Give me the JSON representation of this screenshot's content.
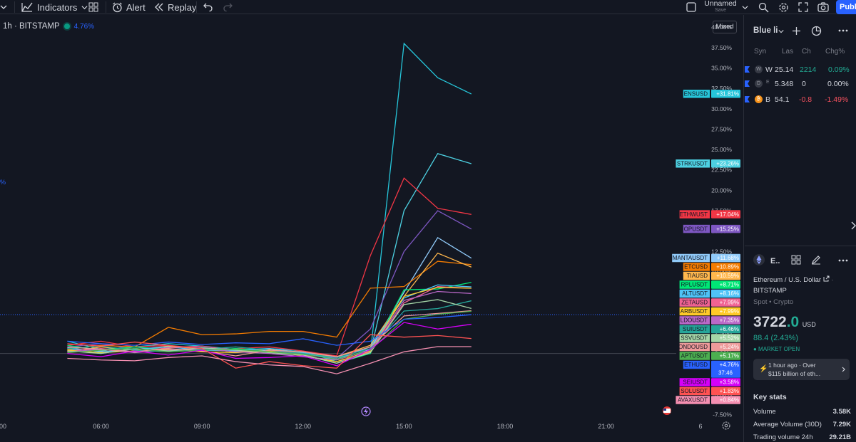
{
  "toolbar": {
    "indicators_label": "Indicators",
    "alert_label": "Alert",
    "replay_label": "Replay",
    "layout_name": "Unnamed",
    "layout_save": "Save",
    "publish_label": "Publi"
  },
  "legend": {
    "symbol": "1h · BITSTAMP",
    "change": "4.76%"
  },
  "side_fragment": "%",
  "scale_mode": "Mixed",
  "chart_data": {
    "type": "line",
    "x_ticks": [
      "00",
      "06:00",
      "09:00",
      "12:00",
      "15:00",
      "18:00",
      "21:00",
      "6"
    ],
    "y_ticks": [
      "40.00%",
      "37.50%",
      "35.00%",
      "32.50%",
      "30.00%",
      "27.50%",
      "25.00%",
      "22.50%",
      "20.00%",
      "17.50%",
      "15.00%",
      "12.50%",
      "10.00%",
      "7.50%",
      "5.00%",
      "2.50%",
      "0.00%",
      "-2.50%",
      "-5.00%",
      "-7.50%"
    ],
    "ylim": [
      -8.5,
      41.5
    ],
    "x_hours": [
      2,
      3,
      4,
      5,
      6,
      7,
      8,
      9,
      10,
      11,
      12,
      13,
      14
    ],
    "series": [
      {
        "name": "ENSUSD",
        "label": "+31.81%",
        "color": "#26c6da",
        "values": [
          1.5,
          0.5,
          0.8,
          1.2,
          0.9,
          0.5,
          0.6,
          0.3,
          -1.0,
          0.0,
          38.0,
          33.8,
          31.81
        ]
      },
      {
        "name": "STRKUSDT",
        "label": "+23.26%",
        "color": "#4dd0e1",
        "values": [
          0.5,
          0.0,
          0.6,
          0.3,
          0.5,
          0.4,
          0.2,
          0.0,
          -0.5,
          0.2,
          17.5,
          24.5,
          23.26
        ]
      },
      {
        "name": "ETHWUST",
        "label": "+17.04%",
        "color": "#f23645",
        "values": [
          1.0,
          1.5,
          0.8,
          1.0,
          0.4,
          0.6,
          0.8,
          0.3,
          -0.3,
          12.0,
          21.5,
          17.8,
          17.04
        ]
      },
      {
        "name": "OPUSDT",
        "label": "+15.25%",
        "color": "#7e57c2",
        "values": [
          0.8,
          1.2,
          0.5,
          0.9,
          0.7,
          0.5,
          0.3,
          0.0,
          -0.6,
          3.0,
          12.5,
          17.5,
          15.25
        ]
      },
      {
        "name": "MANTAUSDT",
        "label": "+11.68%",
        "color": "#90caf9",
        "values": [
          0.6,
          0.3,
          0.8,
          0.4,
          0.6,
          0.2,
          0.4,
          0.1,
          -0.8,
          0.5,
          7.5,
          14.2,
          11.68
        ]
      },
      {
        "name": "ETCUSD",
        "label": "+10.89%",
        "color": "#f57c00",
        "values": [
          0.5,
          1.0,
          0.8,
          3.2,
          2.3,
          2.4,
          2.7,
          2.7,
          2.0,
          8.0,
          8.2,
          11.3,
          10.89
        ]
      },
      {
        "name": "TIAUSD",
        "label": "+10.59%",
        "color": "#ffb74d",
        "values": [
          0.2,
          0.8,
          0.4,
          0.9,
          0.6,
          0.2,
          0.5,
          0.0,
          -0.4,
          1.0,
          7.0,
          12.3,
          10.59
        ]
      },
      {
        "name": "RPLUSDT",
        "label": "+8.71%",
        "color": "#00e676",
        "values": [
          1.0,
          0.4,
          0.8,
          0.5,
          0.3,
          0.6,
          0.2,
          -0.2,
          -1.2,
          0.0,
          7.8,
          7.9,
          8.71
        ]
      },
      {
        "name": "ALTUSDT",
        "label": "+8.16%",
        "color": "#4fc3f7",
        "values": [
          0.7,
          0.2,
          0.5,
          0.8,
          0.4,
          0.3,
          0.6,
          0.1,
          -0.7,
          0.8,
          6.8,
          8.4,
          8.16
        ]
      },
      {
        "name": "ZETAUSD",
        "label": "+7.99%",
        "color": "#f06292",
        "values": [
          0.3,
          0.6,
          0.2,
          0.7,
          0.9,
          0.4,
          0.2,
          -0.1,
          -1.2,
          0.2,
          6.2,
          8.2,
          7.99
        ]
      },
      {
        "name": "ARBUSDT",
        "label": "+7.99%",
        "color": "#ffca28",
        "values": [
          0.4,
          0.1,
          0.3,
          0.5,
          0.2,
          0.1,
          0.3,
          -0.3,
          -1.0,
          0.3,
          7.0,
          8.1,
          7.99
        ]
      },
      {
        "name": "LDOUSDT",
        "label": "+7.35%",
        "color": "#ba68c8",
        "values": [
          0.2,
          0.5,
          0.1,
          0.4,
          0.6,
          0.2,
          0.0,
          -0.4,
          -0.8,
          0.4,
          6.5,
          7.6,
          7.35
        ]
      },
      {
        "name": "SUIUSDT",
        "label": "+6.46%",
        "color": "#26a69a",
        "values": [
          0.6,
          0.9,
          0.4,
          0.2,
          0.5,
          0.8,
          0.4,
          0.0,
          -0.5,
          0.6,
          5.2,
          5.5,
          6.46
        ]
      },
      {
        "name": "SSVUSDT",
        "label": "+5.52%",
        "color": "#a5d6a7",
        "values": [
          0.3,
          0.0,
          0.6,
          0.3,
          0.7,
          0.4,
          0.1,
          -0.2,
          -1.2,
          0.1,
          6.0,
          6.6,
          5.52
        ]
      },
      {
        "name": "ONDOUSD",
        "label": "+5.24%",
        "color": "#ef9a9a",
        "values": [
          0.8,
          0.5,
          0.2,
          0.6,
          0.3,
          -0.3,
          0.4,
          0.2,
          -0.4,
          0.8,
          4.6,
          4.9,
          5.24
        ]
      },
      {
        "name": "APTUSDT",
        "label": "+5.17%",
        "color": "#4caf50",
        "values": [
          0.1,
          0.4,
          0.6,
          0.2,
          0.4,
          0.5,
          0.2,
          -0.1,
          -0.7,
          0.4,
          4.2,
          4.8,
          5.17
        ]
      },
      {
        "name": "ETHUSD",
        "label": "+4.76%",
        "sublabel": "37:46",
        "color": "#2962ff",
        "values": [
          1.5,
          1.2,
          1.0,
          1.4,
          1.1,
          1.3,
          1.2,
          1.8,
          1.0,
          1.5,
          4.2,
          4.4,
          4.76
        ]
      },
      {
        "name": "SEIUSDT",
        "label": "+3.58%",
        "color": "#d500f9",
        "values": [
          0.0,
          -0.4,
          0.3,
          -0.2,
          0.4,
          -0.6,
          -0.5,
          -0.3,
          -1.5,
          0.5,
          3.8,
          3.0,
          3.58
        ]
      },
      {
        "name": "SOLUSDT",
        "label": "+1.83%",
        "color": "#ff5252",
        "values": [
          1.2,
          0.9,
          1.4,
          1.0,
          0.6,
          -1.8,
          -1.0,
          -1.5,
          -1.8,
          2.3,
          2.0,
          2.2,
          1.83
        ]
      },
      {
        "name": "AVAXUSDT",
        "label": "+0.84%",
        "color": "#f48fb1",
        "values": [
          -0.6,
          -0.8,
          -0.9,
          -0.5,
          -0.3,
          -1.0,
          -1.4,
          -1.6,
          -2.5,
          -1.2,
          0.2,
          0.84,
          0.84
        ]
      }
    ]
  },
  "watchlist": {
    "title": "Blue li",
    "columns": {
      "sym": "Syn",
      "last": "Las",
      "chg": "Ch",
      "chgp": "Chg%"
    },
    "rows": [
      {
        "icon": "W",
        "sym": "W",
        "last": "25.14",
        "chg": "2214",
        "chgp": "0.09%",
        "dir": "green"
      },
      {
        "icon": "D",
        "sym": "E",
        "last": "5.348",
        "chg": "0",
        "chgp": "0.00%",
        "dir": "muted"
      },
      {
        "icon": "₿",
        "sym": "B",
        "last": "54.1",
        "chg": "-0.8",
        "chgp": "-1.49%",
        "dir": "red"
      }
    ]
  },
  "details": {
    "sym": "E..",
    "name": "Ethereum / U.S. Dollar",
    "exchange": "BITSTAMP",
    "type": "Spot • Crypto",
    "price_main": "3722",
    "price_frac": ".0",
    "currency": "USD",
    "change": "88.4 (2.43%)",
    "market": "● MARKET OPEN",
    "news_time": "1 hour ago · Over",
    "news_text": "$115 billion of eth...",
    "stats_title": "Key stats",
    "stats": [
      {
        "label": "Volume",
        "value": "3.58K"
      },
      {
        "label": "Average Volume (30D)",
        "value": "7.29K"
      },
      {
        "label": "Trading volume 24h",
        "value": "29.21B"
      }
    ]
  }
}
